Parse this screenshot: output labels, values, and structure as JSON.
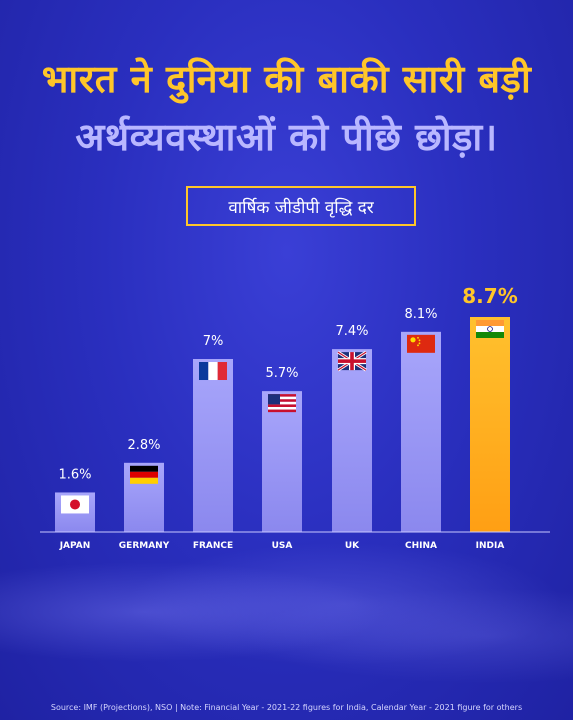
{
  "header": {
    "title_line1": "भारत ने दुनिया की बाकी सारी बड़ी",
    "title_line2": "अर्थव्यवस्थाओं को पीछे छोड़ा।"
  },
  "chart_data": {
    "type": "bar",
    "title": "वार्षिक जीडीपी वृद्धि दर",
    "categories": [
      "JAPAN",
      "GERMANY",
      "FRANCE",
      "USA",
      "UK",
      "CHINA",
      "INDIA"
    ],
    "values": [
      1.6,
      2.8,
      7,
      5.7,
      7.4,
      8.1,
      8.7
    ],
    "value_labels": [
      "1.6%",
      "2.8%",
      "7%",
      "5.7%",
      "7.4%",
      "8.1%",
      "8.7%"
    ],
    "flags": [
      "japan-flag",
      "germany-flag",
      "france-flag",
      "usa-flag",
      "uk-flag",
      "china-flag",
      "india-flag"
    ],
    "highlight": "INDIA",
    "bar_color": "#9b98f5",
    "highlight_color": "#ffb21f",
    "ylim": [
      0,
      8.7
    ],
    "grid": false
  },
  "footer": {
    "source": "Source: IMF (Projections), NSO  |  Note: Financial Year - 2021-22 figures for India, Calendar Year - 2021 figure for others"
  }
}
